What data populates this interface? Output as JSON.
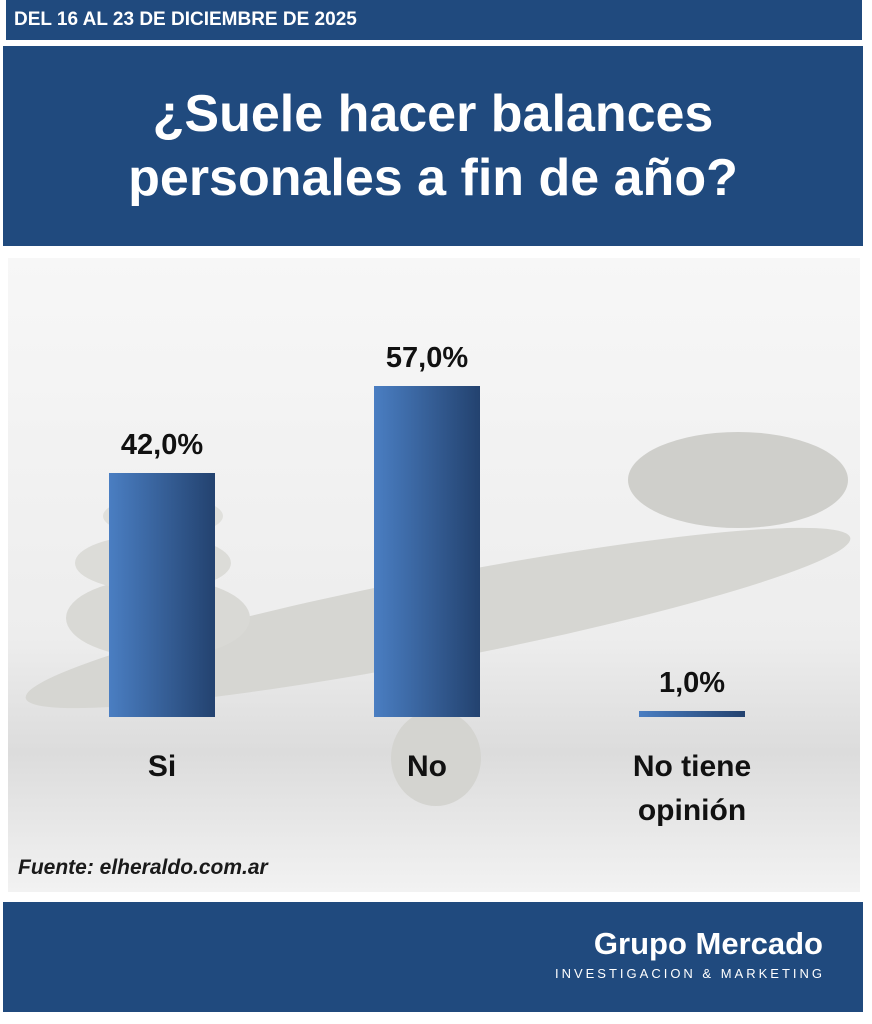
{
  "header": {
    "date": "DEL 16 AL 23 DE DICIEMBRE DE 2025"
  },
  "chart_data": {
    "type": "bar",
    "title": "¿Suele hacer balances personales  a fin de año?",
    "categories": [
      "Si",
      "No",
      "No tiene opinión"
    ],
    "values": [
      42.0,
      57.0,
      1.0
    ],
    "value_labels": [
      "42,0%",
      "57,0%",
      "1,0%"
    ],
    "color": "#4a7ec2",
    "source": "Fuente: elheraldo.com.ar"
  },
  "footer": {
    "brand": "Grupo Mercado",
    "tagline": "INVESTIGACION & MARKETING"
  }
}
